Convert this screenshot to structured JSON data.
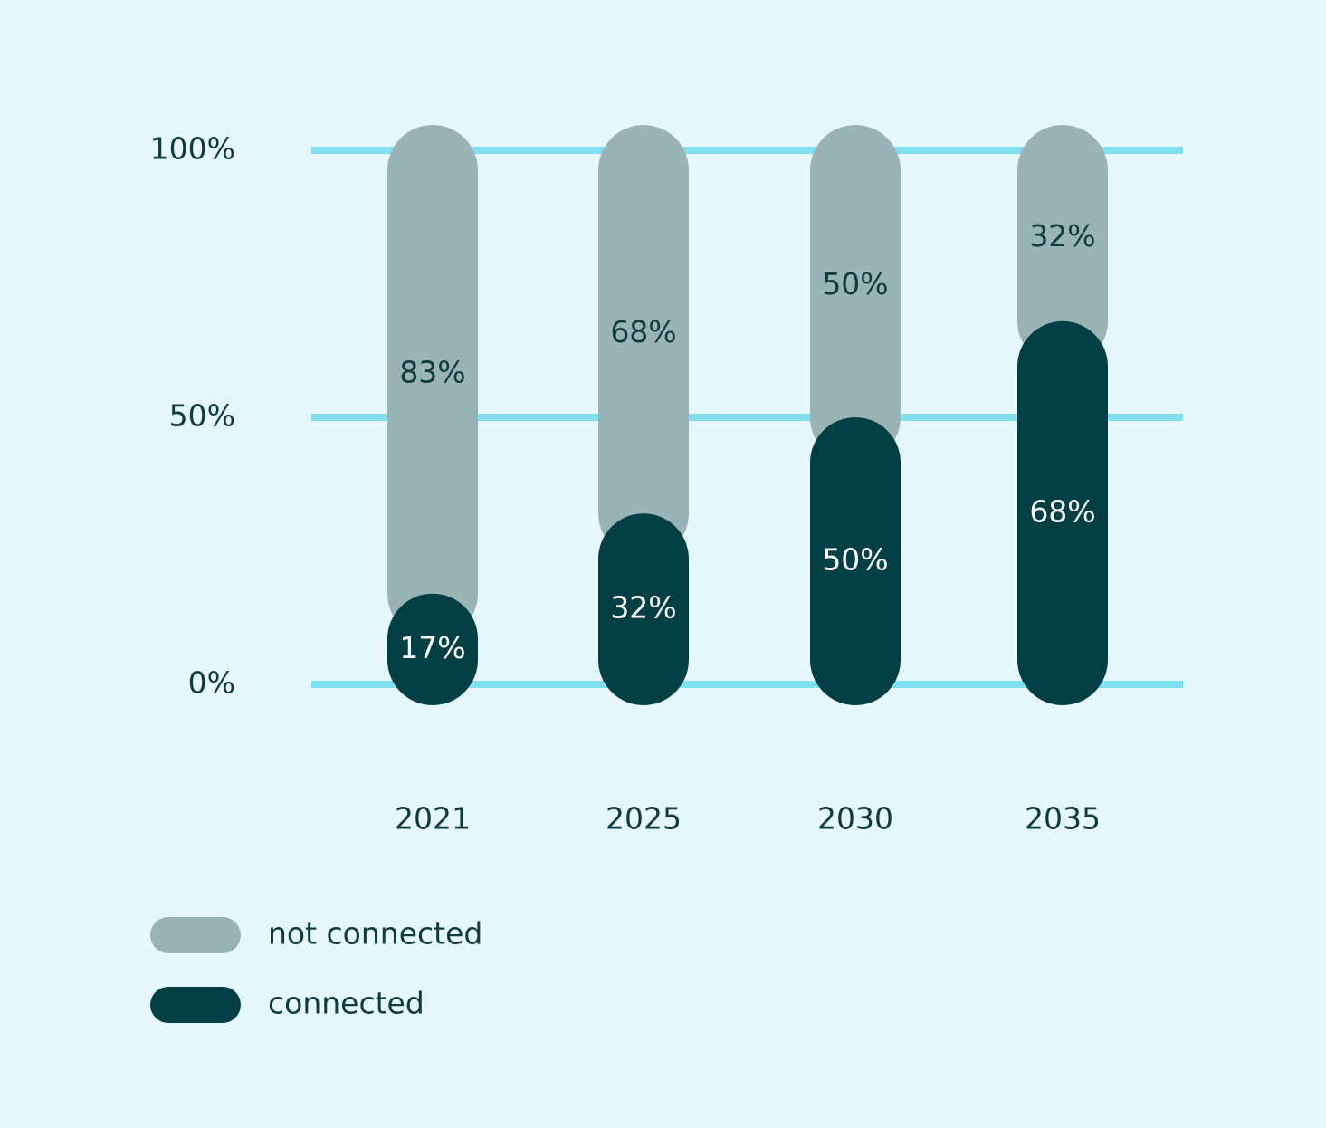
{
  "chart_data": {
    "type": "bar",
    "stacked": true,
    "categories": [
      "2021",
      "2025",
      "2030",
      "2035"
    ],
    "series": [
      {
        "name": "not connected",
        "color": "#9ab3b4",
        "values": [
          83,
          68,
          50,
          32
        ],
        "value_labels": [
          "83%",
          "68%",
          "50%",
          "32%"
        ]
      },
      {
        "name": "connected",
        "color": "#023f45",
        "values": [
          17,
          32,
          50,
          68
        ],
        "value_labels": [
          "17%",
          "32%",
          "50%",
          "68%"
        ]
      }
    ],
    "ylim": [
      0,
      100
    ],
    "yticks": [
      {
        "value": 0,
        "label": "0%"
      },
      {
        "value": 50,
        "label": "50%"
      },
      {
        "value": 100,
        "label": "100%"
      }
    ],
    "grid": true,
    "grid_color": "#80e0f0"
  }
}
